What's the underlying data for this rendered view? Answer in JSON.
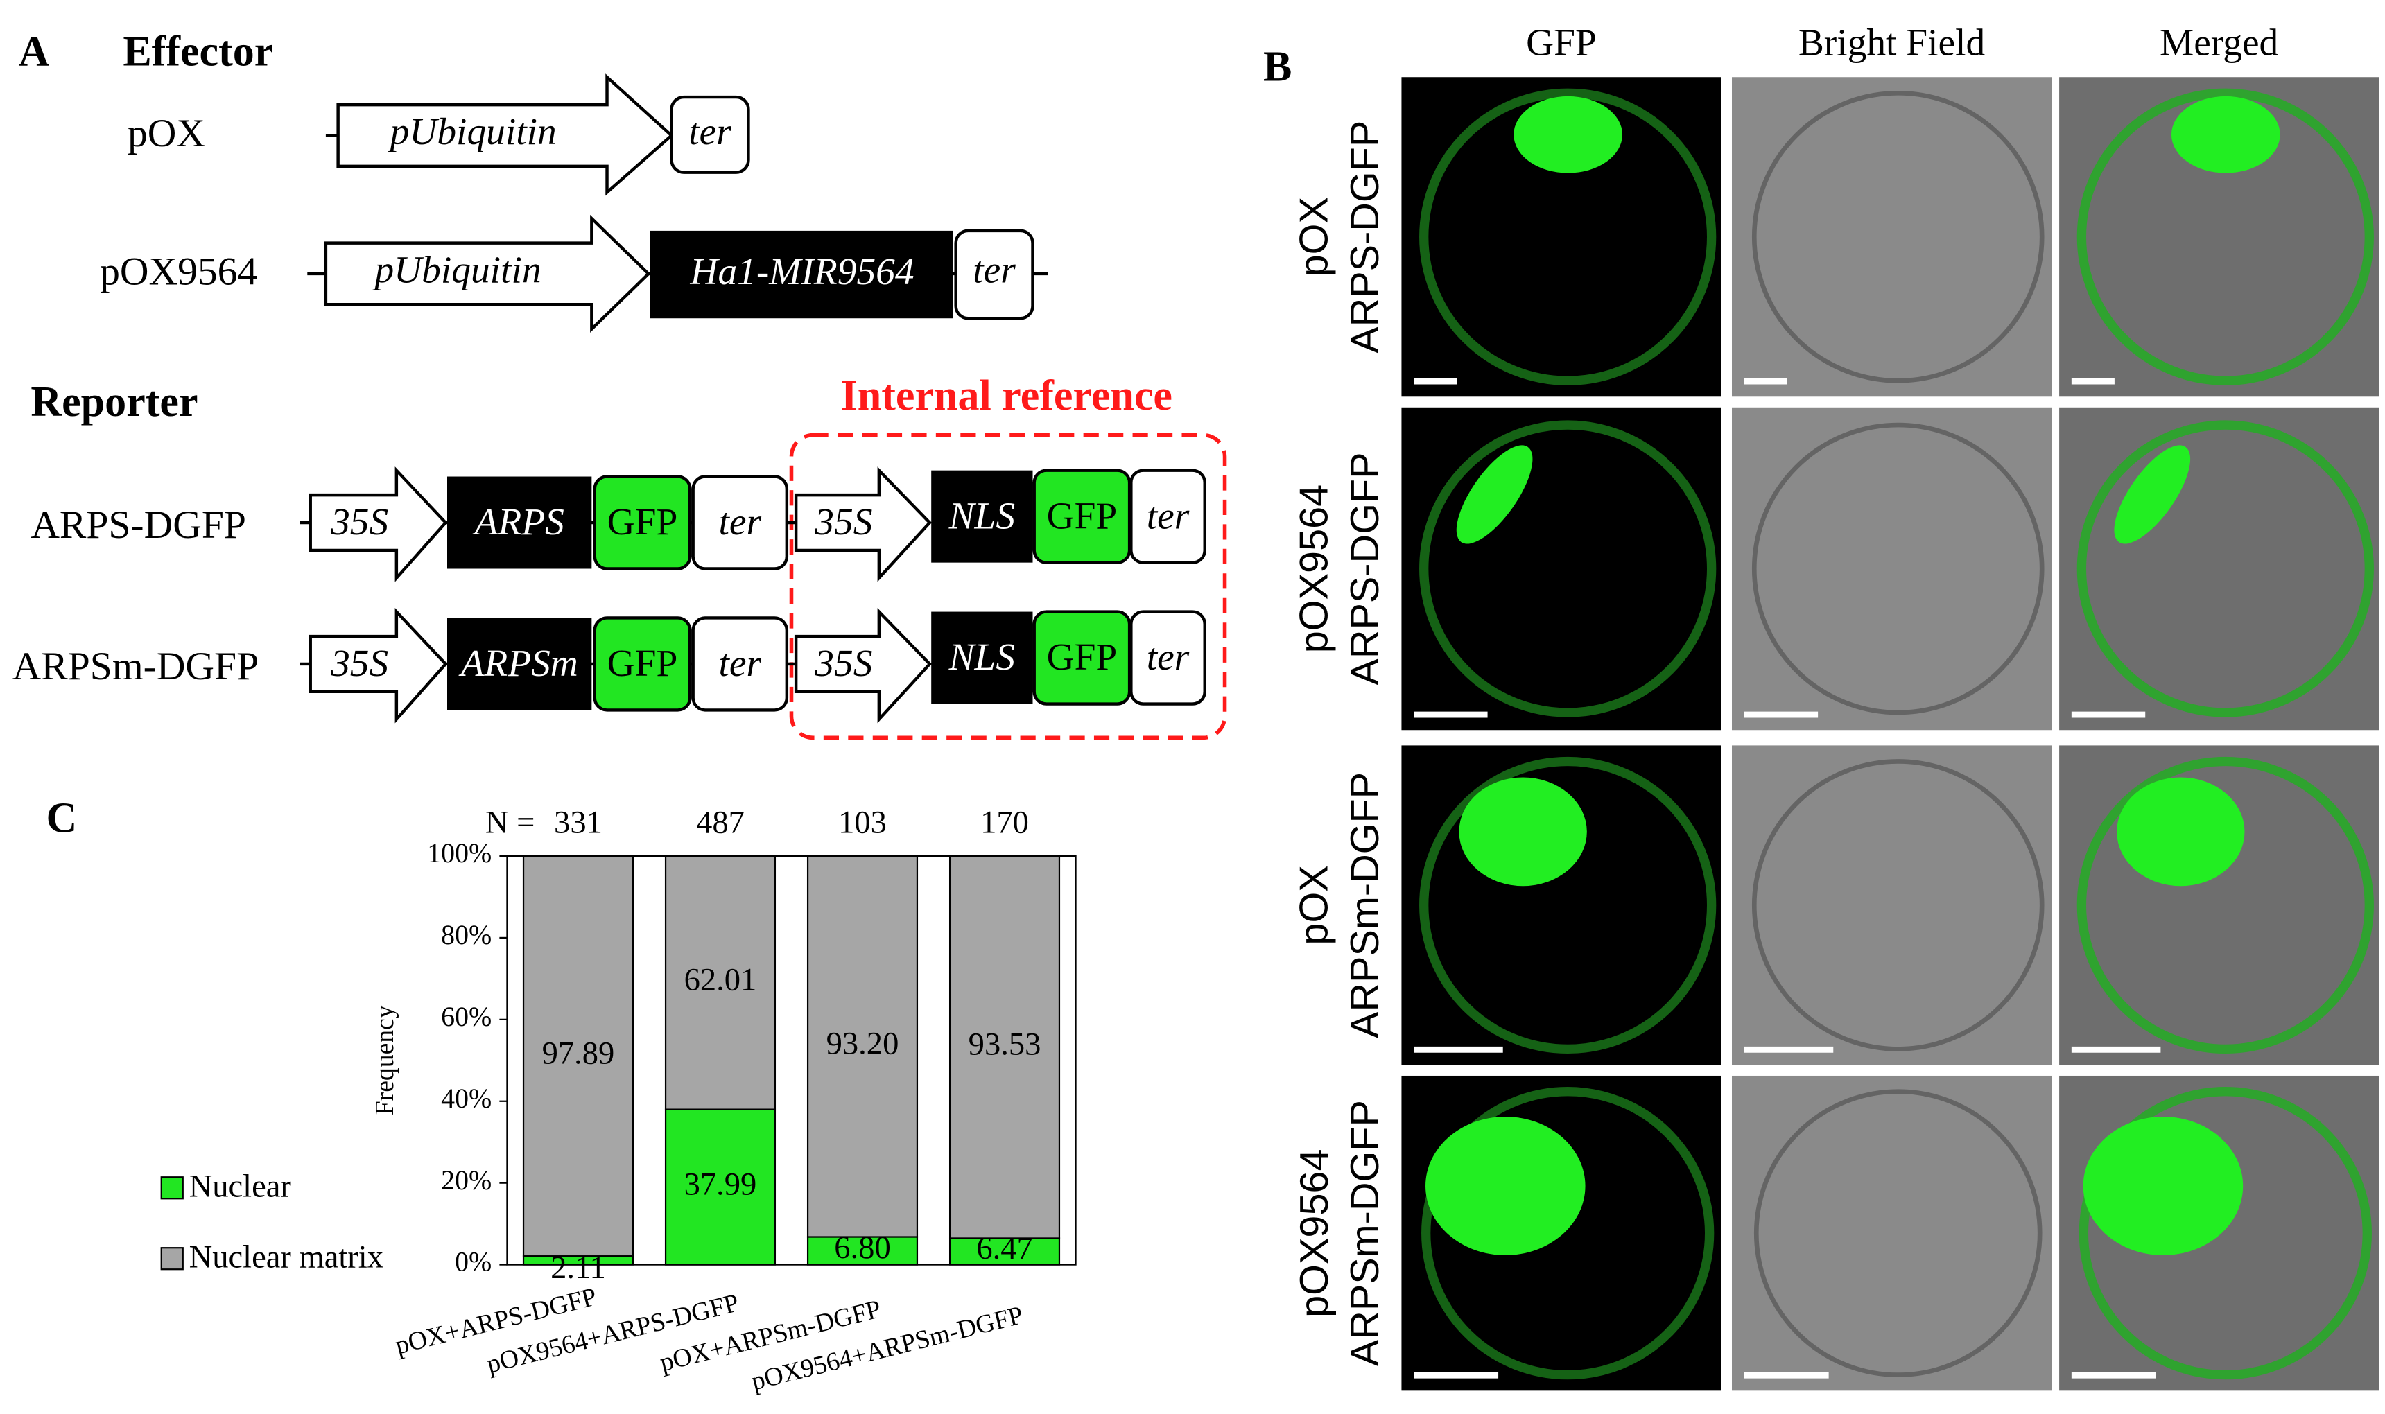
{
  "panel_a": {
    "label": "A",
    "effector_title": "Effector",
    "reporter_title": "Reporter",
    "internal_reference": "Internal reference",
    "pox": {
      "name": "pOX",
      "promoter": "pUbiquitin",
      "terminator": "ter"
    },
    "pox9564": {
      "name": "pOX9564",
      "promoter": "pUbiquitin",
      "gene": "Ha1-MIR9564",
      "terminator": "ter"
    },
    "reporters": [
      {
        "name": "ARPS-DGFP",
        "promoter": "35S",
        "target": "ARPS",
        "gfp": "GFP",
        "terminator": "ter",
        "ref_promoter": "35S",
        "ref_nls": "NLS",
        "ref_gfp": "GFP",
        "ref_terminator": "ter"
      },
      {
        "name": "ARPSm-DGFP",
        "promoter": "35S",
        "target": "ARPSm",
        "gfp": "GFP",
        "terminator": "ter",
        "ref_promoter": "35S",
        "ref_nls": "NLS",
        "ref_gfp": "GFP",
        "ref_terminator": "ter"
      }
    ]
  },
  "panel_b": {
    "label": "B",
    "columns": [
      "GFP",
      "Bright Field",
      "Merged"
    ],
    "rows": [
      [
        "pOX",
        "ARPS-DGFP"
      ],
      [
        "pOX9564",
        "ARPS-DGFP"
      ],
      [
        "pOX",
        "ARPSm-DGFP"
      ],
      [
        "pOX9564",
        "ARPSm-DGFP"
      ]
    ]
  },
  "panel_c_label": "C",
  "chart_data": {
    "type": "stacked_bar",
    "y_label": "Frequency",
    "n_label": "N =",
    "n_values": [
      331,
      487,
      103,
      170
    ],
    "categories": [
      "pOX+ARPS-DGFP",
      "pOX9564+ARPS-DGFP",
      "pOX+ARPSm-DGFP",
      "pOX9564+ARPSm-DGFP"
    ],
    "series": [
      {
        "name": "Nuclear",
        "color": "#22e622",
        "values": [
          2.11,
          37.99,
          6.8,
          6.47
        ],
        "value_labels": [
          "2.11",
          "37.99",
          "6.80",
          "6.47"
        ]
      },
      {
        "name": "Nuclear matrix",
        "color": "#a6a6a6",
        "values": [
          97.89,
          62.01,
          93.2,
          93.53
        ],
        "value_labels": [
          "97.89",
          "62.01",
          "93.20",
          "93.53"
        ]
      }
    ],
    "ylim": [
      0,
      100
    ],
    "yticks": [
      {
        "value": 0,
        "label": "0%"
      },
      {
        "value": 20,
        "label": "20%"
      },
      {
        "value": 40,
        "label": "40%"
      },
      {
        "value": 60,
        "label": "60%"
      },
      {
        "value": 80,
        "label": "80%"
      },
      {
        "value": 100,
        "label": "100%"
      }
    ]
  }
}
